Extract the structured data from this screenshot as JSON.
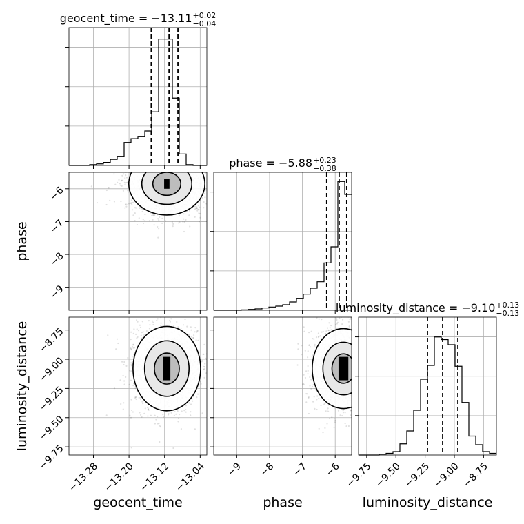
{
  "chart_data": {
    "type": "corner",
    "parameters": [
      "geocent_time",
      "phase",
      "luminosity_distance"
    ],
    "titles": [
      {
        "param": "geocent_time",
        "name": "geocent_time",
        "median": "−13.11",
        "plus": "+0.02",
        "minus": "−0.04"
      },
      {
        "param": "phase",
        "name": "phase",
        "median": "−5.88",
        "plus": "+0.23",
        "minus": "−0.38"
      },
      {
        "param": "luminosity_distance",
        "name": "luminosity_distance",
        "median": "−9.10",
        "plus": "+0.13",
        "minus": "−0.13"
      }
    ],
    "axes": {
      "geocent_time": {
        "label": "geocent_time",
        "range": [
          -13.335,
          -13.025
        ],
        "ticks": [
          -13.28,
          -13.2,
          -13.12,
          -13.04
        ],
        "tick_labels": [
          "−13.28",
          "−13.20",
          "−13.12",
          "−13.04"
        ]
      },
      "phase": {
        "label": "phase",
        "range": [
          -9.7,
          -5.5
        ],
        "ticks": [
          -9,
          -8,
          -7,
          -6
        ],
        "tick_labels": [
          "−9",
          "−8",
          "−7",
          "−6"
        ]
      },
      "luminosity_distance": {
        "label": "luminosity_distance",
        "range": [
          -9.82,
          -8.64
        ],
        "ticks": [
          -9.75,
          -9.5,
          -9.25,
          -9.0,
          -8.75
        ],
        "tick_labels": [
          "−9.75",
          "−9.50",
          "−9.25",
          "−9.00",
          "−8.75"
        ]
      }
    },
    "histograms": {
      "geocent_time": {
        "bin_edges": [
          -13.335,
          -13.3195,
          -13.304,
          -13.2885,
          -13.273,
          -13.2575,
          -13.242,
          -13.2265,
          -13.211,
          -13.1955,
          -13.18,
          -13.1645,
          -13.149,
          -13.1335,
          -13.118,
          -13.1025,
          -13.087,
          -13.0715,
          -13.056,
          -13.0405,
          -13.025
        ],
        "counts": [
          0,
          0,
          0,
          1,
          2,
          4,
          8,
          12,
          30,
          35,
          38,
          45,
          70,
          165,
          165,
          88,
          15,
          1,
          0,
          0
        ],
        "quantiles": [
          -13.15,
          -13.11,
          -13.09
        ],
        "ylim": [
          0,
          180
        ]
      },
      "phase": {
        "bin_edges": [
          -9.7,
          -9.49,
          -9.28,
          -9.07,
          -8.86,
          -8.65,
          -8.44,
          -8.23,
          -8.02,
          -7.81,
          -7.6,
          -7.39,
          -7.18,
          -6.97,
          -6.76,
          -6.55,
          -6.34,
          -6.13,
          -5.92,
          -5.71,
          -5.5
        ],
        "counts": [
          0,
          0,
          0,
          0,
          1,
          2,
          3,
          5,
          7,
          9,
          12,
          18,
          26,
          35,
          48,
          62,
          103,
          138,
          280,
          252
        ],
        "quantiles": [
          -6.26,
          -5.88,
          -5.65
        ],
        "ylim": [
          0,
          300
        ]
      },
      "luminosity_distance": {
        "bin_edges": [
          -9.82,
          -9.761,
          -9.702,
          -9.643,
          -9.584,
          -9.525,
          -9.466,
          -9.407,
          -9.348,
          -9.289,
          -9.23,
          -9.171,
          -9.112,
          -9.053,
          -8.994,
          -8.935,
          -8.876,
          -8.817,
          -8.758,
          -8.699,
          -8.64
        ],
        "counts": [
          0,
          0,
          0,
          1,
          2,
          4,
          13,
          28,
          52,
          88,
          104,
          137,
          134,
          128,
          103,
          61,
          22,
          12,
          4,
          2
        ],
        "quantiles": [
          -9.23,
          -9.1,
          -8.97
        ],
        "ylim": [
          0,
          160
        ]
      }
    },
    "hist2d": [
      {
        "x": "geocent_time",
        "y": "phase",
        "center": [
          -13.115,
          -5.85
        ],
        "spread": [
          0.045,
          0.5
        ],
        "peak": [
          -13.115,
          -5.85
        ],
        "peak_size": [
          0.006,
          0.15
        ]
      },
      {
        "x": "geocent_time",
        "y": "luminosity_distance",
        "center": [
          -13.115,
          -9.08
        ],
        "spread": [
          0.04,
          0.19
        ],
        "peak": [
          -13.115,
          -9.08
        ],
        "peak_size": [
          0.008,
          0.1
        ]
      },
      {
        "x": "phase",
        "y": "luminosity_distance",
        "center": [
          -5.75,
          -9.08
        ],
        "spread": [
          0.5,
          0.18
        ],
        "peak": [
          -5.75,
          -9.08
        ],
        "peak_size": [
          0.15,
          0.1
        ]
      }
    ],
    "grid": true
  }
}
